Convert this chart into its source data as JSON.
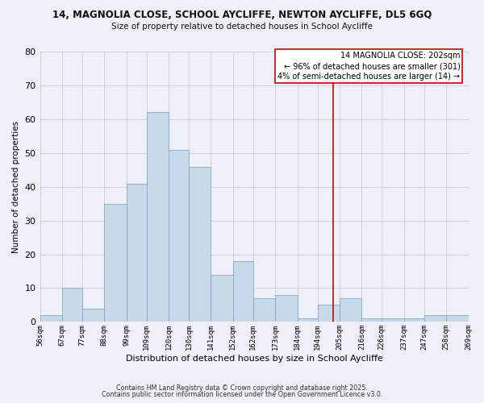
{
  "title_line1": "14, MAGNOLIA CLOSE, SCHOOL AYCLIFFE, NEWTON AYCLIFFE, DL5 6GQ",
  "title_line2": "Size of property relative to detached houses in School Aycliffe",
  "xlabel": "Distribution of detached houses by size in School Aycliffe",
  "ylabel": "Number of detached properties",
  "bar_values": [
    2,
    10,
    4,
    35,
    41,
    62,
    51,
    46,
    14,
    18,
    7,
    8,
    1,
    5,
    7,
    1,
    1,
    1,
    2,
    2
  ],
  "bin_edges": [
    56,
    67,
    77,
    88,
    99,
    109,
    120,
    130,
    141,
    152,
    162,
    173,
    184,
    194,
    205,
    216,
    226,
    237,
    247,
    258,
    269
  ],
  "tick_labels": [
    "56sqm",
    "67sqm",
    "77sqm",
    "88sqm",
    "99sqm",
    "109sqm",
    "120sqm",
    "130sqm",
    "141sqm",
    "152sqm",
    "162sqm",
    "173sqm",
    "184sqm",
    "194sqm",
    "205sqm",
    "216sqm",
    "226sqm",
    "237sqm",
    "247sqm",
    "258sqm",
    "269sqm"
  ],
  "bar_facecolor": "#c9d9ea",
  "bar_edgecolor": "#7eaac8",
  "vline_x": 202,
  "vline_color": "#cc0000",
  "ylim": [
    0,
    80
  ],
  "yticks": [
    0,
    10,
    20,
    30,
    40,
    50,
    60,
    70,
    80
  ],
  "grid_color": "#c8cdd5",
  "background_color": "#edf1f7",
  "annotation_text": "14 MAGNOLIA CLOSE: 202sqm\n← 96% of detached houses are smaller (301)\n4% of semi-detached houses are larger (14) →",
  "annotation_box_edgecolor": "#cc0000",
  "footer_line1": "Contains HM Land Registry data © Crown copyright and database right 2025.",
  "footer_line2": "Contains public sector information licensed under the Open Government Licence v3.0."
}
